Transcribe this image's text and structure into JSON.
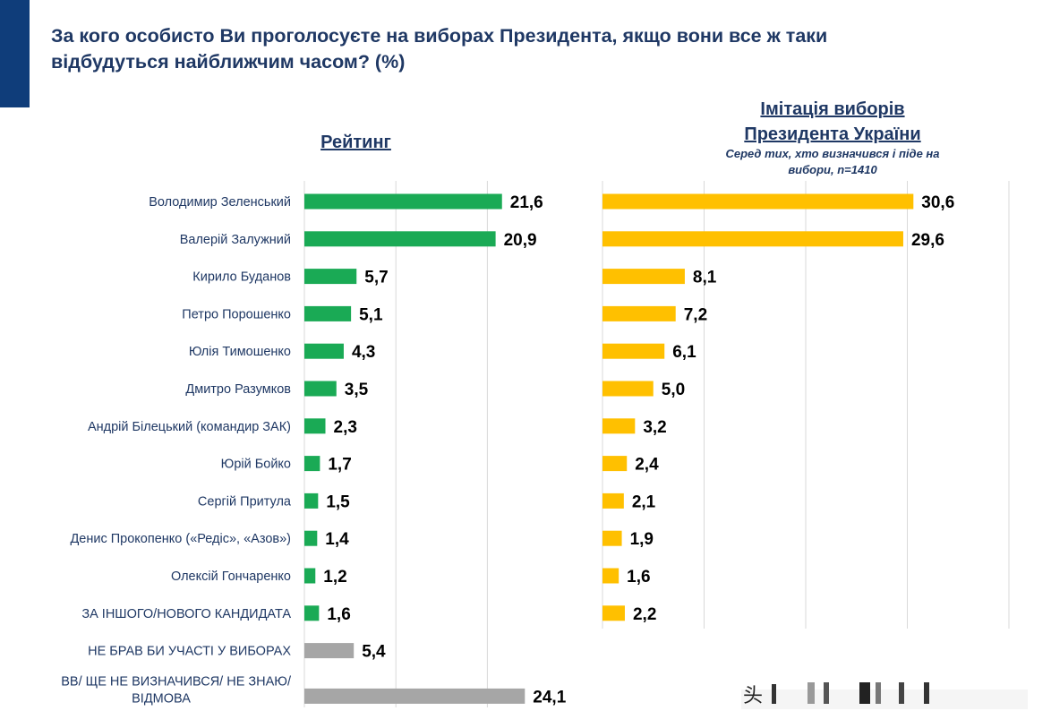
{
  "title": "За кого особисто Ви проголосуєте на виборах Президента, якщо вони все ж таки відбудуться найближчим часом? (%)",
  "colors": {
    "accent": "#0f3d7a",
    "title": "#1f3864",
    "green": "#1aaa55",
    "yellow": "#ffc000",
    "gray": "#a6a6a6"
  },
  "chart_data": [
    {
      "type": "bar",
      "orientation": "horizontal",
      "title": "Рейтинг",
      "categories": [
        "Володимир Зеленський",
        "Валерій Залужний",
        "Кирило Буданов",
        "Петро Порошенко",
        "Юлія Тимошенко",
        "Дмитро Разумков",
        "Андрій Білецький (командир ЗАК)",
        "Юрій Бойко",
        "Сергій Притула",
        "Денис Прокопенко («Редіс», «Азов»)",
        "Олексій Гончаренко",
        "ЗА ІНШОГО/НОВОГО КАНДИДАТА",
        "НЕ БРАВ БИ УЧАСТІ У ВИБОРАХ",
        "ВВ/ ЩЕ НЕ ВИЗНАЧИВСЯ/ НЕ ЗНАЮ/ ВІДМОВА"
      ],
      "values": [
        21.6,
        20.9,
        5.7,
        5.1,
        4.3,
        3.5,
        2.3,
        1.7,
        1.5,
        1.4,
        1.2,
        1.6,
        5.4,
        24.1
      ],
      "labels": [
        "21,6",
        "20,9",
        "5,7",
        "5,1",
        "4,3",
        "3,5",
        "2,3",
        "1,7",
        "1,5",
        "1,4",
        "1,2",
        "1,6",
        "5,4",
        "24,1"
      ],
      "bar_colors": [
        "green",
        "green",
        "green",
        "green",
        "green",
        "green",
        "green",
        "green",
        "green",
        "green",
        "green",
        "green",
        "gray",
        "gray"
      ],
      "xlim": [
        0,
        30
      ],
      "grid": true
    },
    {
      "type": "bar",
      "orientation": "horizontal",
      "title": "Імітація виборів Президента України",
      "subtitle": "Серед тих, хто визначився і піде на вибори, n=1410",
      "values": [
        30.6,
        29.6,
        8.1,
        7.2,
        6.1,
        5.0,
        3.2,
        2.4,
        2.1,
        1.9,
        1.6,
        2.2
      ],
      "labels": [
        "30,6",
        "29,6",
        "8,1",
        "7,2",
        "6,1",
        "5,0",
        "3,2",
        "2,4",
        "2,1",
        "1,9",
        "1,6",
        "2,2"
      ],
      "bar_color": "yellow",
      "xlim": [
        0,
        40
      ],
      "grid": true
    }
  ]
}
